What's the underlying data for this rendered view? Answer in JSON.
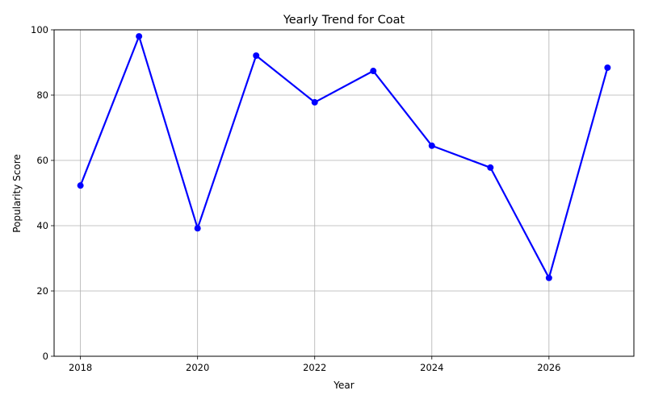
{
  "chart_data": {
    "type": "line",
    "title": "Yearly Trend for Coat",
    "xlabel": "Year",
    "ylabel": "Popularity Score",
    "x": [
      2018,
      2019,
      2020,
      2021,
      2022,
      2023,
      2024,
      2025,
      2026,
      2027
    ],
    "series": [
      {
        "values": [
          52.3,
          98.0,
          39.2,
          92.1,
          77.8,
          87.4,
          64.5,
          57.8,
          24.0,
          88.4
        ],
        "color": "#0000ff",
        "marker": "circle"
      }
    ],
    "xlim": [
      2017.55,
      2027.45
    ],
    "ylim": [
      0,
      100
    ],
    "xticks": [
      2018,
      2020,
      2022,
      2024,
      2026
    ],
    "yticks": [
      0,
      20,
      40,
      60,
      80,
      100
    ],
    "grid": true,
    "legend": "none"
  }
}
